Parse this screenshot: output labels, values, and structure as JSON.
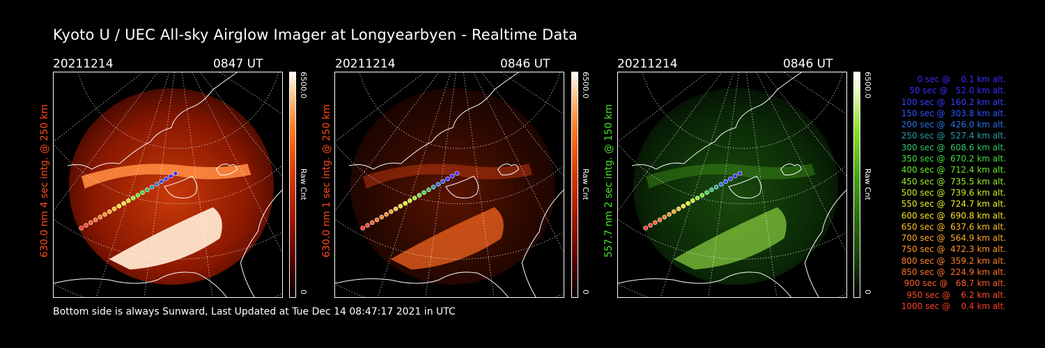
{
  "title": "Kyoto U / UEC All-sky Airglow Imager at Longyearbyen - Realtime Data",
  "footer": "Bottom side is always Sunward, Last Updated at Tue Dec 14 08:47:17 2021 in UTC",
  "panels": [
    {
      "date": "20211214",
      "time": "0847 UT",
      "ylabel": "630.0 nm 4 sec intg. @ 250 km",
      "label_color": "#ff4a1c",
      "cbar_max": "6500.0",
      "cbar_min": "0",
      "cbar_unit": "Raw Cnt",
      "theme": "red"
    },
    {
      "date": "20211214",
      "time": "0846 UT",
      "ylabel": "630.0 nm 1 sec intg. @ 250 km",
      "label_color": "#ff4a1c",
      "cbar_max": "6500.0",
      "cbar_min": "0",
      "cbar_unit": "Raw Cnt",
      "theme": "red-dim"
    },
    {
      "date": "20211214",
      "time": "0846 UT",
      "ylabel": "557.7 nm 2 sec intg. @ 150 km",
      "label_color": "#46e626",
      "cbar_max": "6500.0",
      "cbar_min": "0",
      "cbar_unit": "Raw Cnt",
      "theme": "green"
    }
  ],
  "legend": [
    {
      "text": "   0 sec @    0.1 km alt.",
      "color": "#3a2cff"
    },
    {
      "text": "  50 sec @   52.0 km alt.",
      "color": "#3a2cff"
    },
    {
      "text": " 100 sec @  160.2 km alt.",
      "color": "#3a3cff"
    },
    {
      "text": " 150 sec @  303.8 km alt.",
      "color": "#2f54ff"
    },
    {
      "text": " 200 sec @  426.0 km alt.",
      "color": "#2a72e8"
    },
    {
      "text": " 250 sec @  527.4 km alt.",
      "color": "#2a9aa8"
    },
    {
      "text": " 300 sec @  608.6 km alt.",
      "color": "#2ec86a"
    },
    {
      "text": " 350 sec @  670.2 km alt.",
      "color": "#40e040"
    },
    {
      "text": " 400 sec @  712.4 km alt.",
      "color": "#6ee82e"
    },
    {
      "text": " 450 sec @  735.5 km alt.",
      "color": "#9aee2a"
    },
    {
      "text": " 500 sec @  739.6 km alt.",
      "color": "#c8f02a"
    },
    {
      "text": " 550 sec @  724.7 km alt.",
      "color": "#eef02a"
    },
    {
      "text": " 600 sec @  690.8 km alt.",
      "color": "#ffe02a"
    },
    {
      "text": " 650 sec @  637.6 km alt.",
      "color": "#ffc22a"
    },
    {
      "text": " 700 sec @  564.9 km alt.",
      "color": "#ffa82a"
    },
    {
      "text": " 750 sec @  472.3 km alt.",
      "color": "#ff942a"
    },
    {
      "text": " 800 sec @  359.2 km alt.",
      "color": "#ff822a"
    },
    {
      "text": " 850 sec @  224.9 km alt.",
      "color": "#ff702a"
    },
    {
      "text": " 900 sec @   68.7 km alt.",
      "color": "#ff5e2a"
    },
    {
      "text": " 950 sec @    6.2 km alt.",
      "color": "#ff4c2a"
    },
    {
      "text": "1000 sec @    0.4 km alt.",
      "color": "#ff3a2a"
    }
  ]
}
